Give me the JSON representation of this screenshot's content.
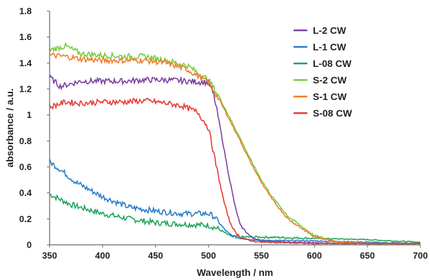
{
  "chart_data": {
    "type": "line",
    "xlabel": "Wavelength / nm",
    "ylabel": "absorbance / a.u.",
    "xlim": [
      350,
      700
    ],
    "ylim": [
      0,
      1.8
    ],
    "xticks": [
      "350",
      "400",
      "450",
      "500",
      "550",
      "600",
      "650",
      "700"
    ],
    "yticks": [
      "0",
      "0.2",
      "0.4",
      "0.6",
      "0.8",
      "1",
      "1.2",
      "1.4",
      "1.6",
      "1.8"
    ],
    "grid": false,
    "legend_position": "top-right",
    "series": [
      {
        "name": "L-2 CW",
        "color": "#7b3fa0",
        "x": [
          350,
          360,
          380,
          400,
          420,
          440,
          460,
          480,
          500,
          505,
          510,
          515,
          520,
          525,
          530,
          540,
          550,
          575,
          600,
          650,
          700
        ],
        "y": [
          1.29,
          1.22,
          1.26,
          1.26,
          1.26,
          1.27,
          1.27,
          1.26,
          1.25,
          1.15,
          0.95,
          0.72,
          0.5,
          0.3,
          0.15,
          0.06,
          0.03,
          0.02,
          0.015,
          0.01,
          0.01
        ]
      },
      {
        "name": "L-1 CW",
        "color": "#2a7bc8",
        "x": [
          350,
          360,
          375,
          400,
          425,
          450,
          475,
          500,
          505,
          510,
          515,
          520,
          525,
          530,
          540,
          550,
          600,
          650,
          700
        ],
        "y": [
          0.64,
          0.58,
          0.48,
          0.37,
          0.29,
          0.26,
          0.24,
          0.24,
          0.22,
          0.17,
          0.12,
          0.08,
          0.06,
          0.05,
          0.04,
          0.035,
          0.03,
          0.02,
          0.01
        ]
      },
      {
        "name": "L-08 CW",
        "color": "#1fa35a",
        "x": [
          350,
          370,
          400,
          425,
          450,
          475,
          500,
          510,
          520,
          530,
          550,
          600,
          650,
          700
        ],
        "y": [
          0.39,
          0.31,
          0.24,
          0.2,
          0.17,
          0.16,
          0.15,
          0.12,
          0.07,
          0.06,
          0.06,
          0.05,
          0.04,
          0.02
        ]
      },
      {
        "name": "S-2 CW",
        "color": "#7ac943",
        "x": [
          350,
          365,
          380,
          400,
          420,
          440,
          460,
          480,
          500,
          510,
          520,
          530,
          540,
          550,
          560,
          575,
          600,
          625,
          650,
          700
        ],
        "y": [
          1.5,
          1.53,
          1.47,
          1.46,
          1.45,
          1.45,
          1.42,
          1.38,
          1.27,
          1.14,
          0.98,
          0.82,
          0.65,
          0.5,
          0.37,
          0.22,
          0.07,
          0.02,
          0.01,
          0.01
        ]
      },
      {
        "name": "S-1 CW",
        "color": "#f07d2a",
        "x": [
          350,
          365,
          380,
          400,
          420,
          440,
          460,
          480,
          500,
          510,
          520,
          530,
          540,
          550,
          560,
          575,
          600,
          625,
          650,
          700
        ],
        "y": [
          1.46,
          1.45,
          1.43,
          1.42,
          1.42,
          1.42,
          1.4,
          1.35,
          1.25,
          1.12,
          0.96,
          0.8,
          0.63,
          0.48,
          0.35,
          0.2,
          0.06,
          0.02,
          0.01,
          0.01
        ]
      },
      {
        "name": "S-08 CW",
        "color": "#e53935",
        "x": [
          350,
          365,
          380,
          400,
          420,
          440,
          460,
          475,
          490,
          500,
          505,
          510,
          515,
          520,
          525,
          530,
          540,
          550,
          600,
          650,
          700
        ],
        "y": [
          1.06,
          1.1,
          1.09,
          1.1,
          1.1,
          1.11,
          1.09,
          1.07,
          1.02,
          0.9,
          0.7,
          0.5,
          0.32,
          0.18,
          0.1,
          0.06,
          0.03,
          0.02,
          0.01,
          0.01,
          0.01
        ]
      }
    ]
  }
}
